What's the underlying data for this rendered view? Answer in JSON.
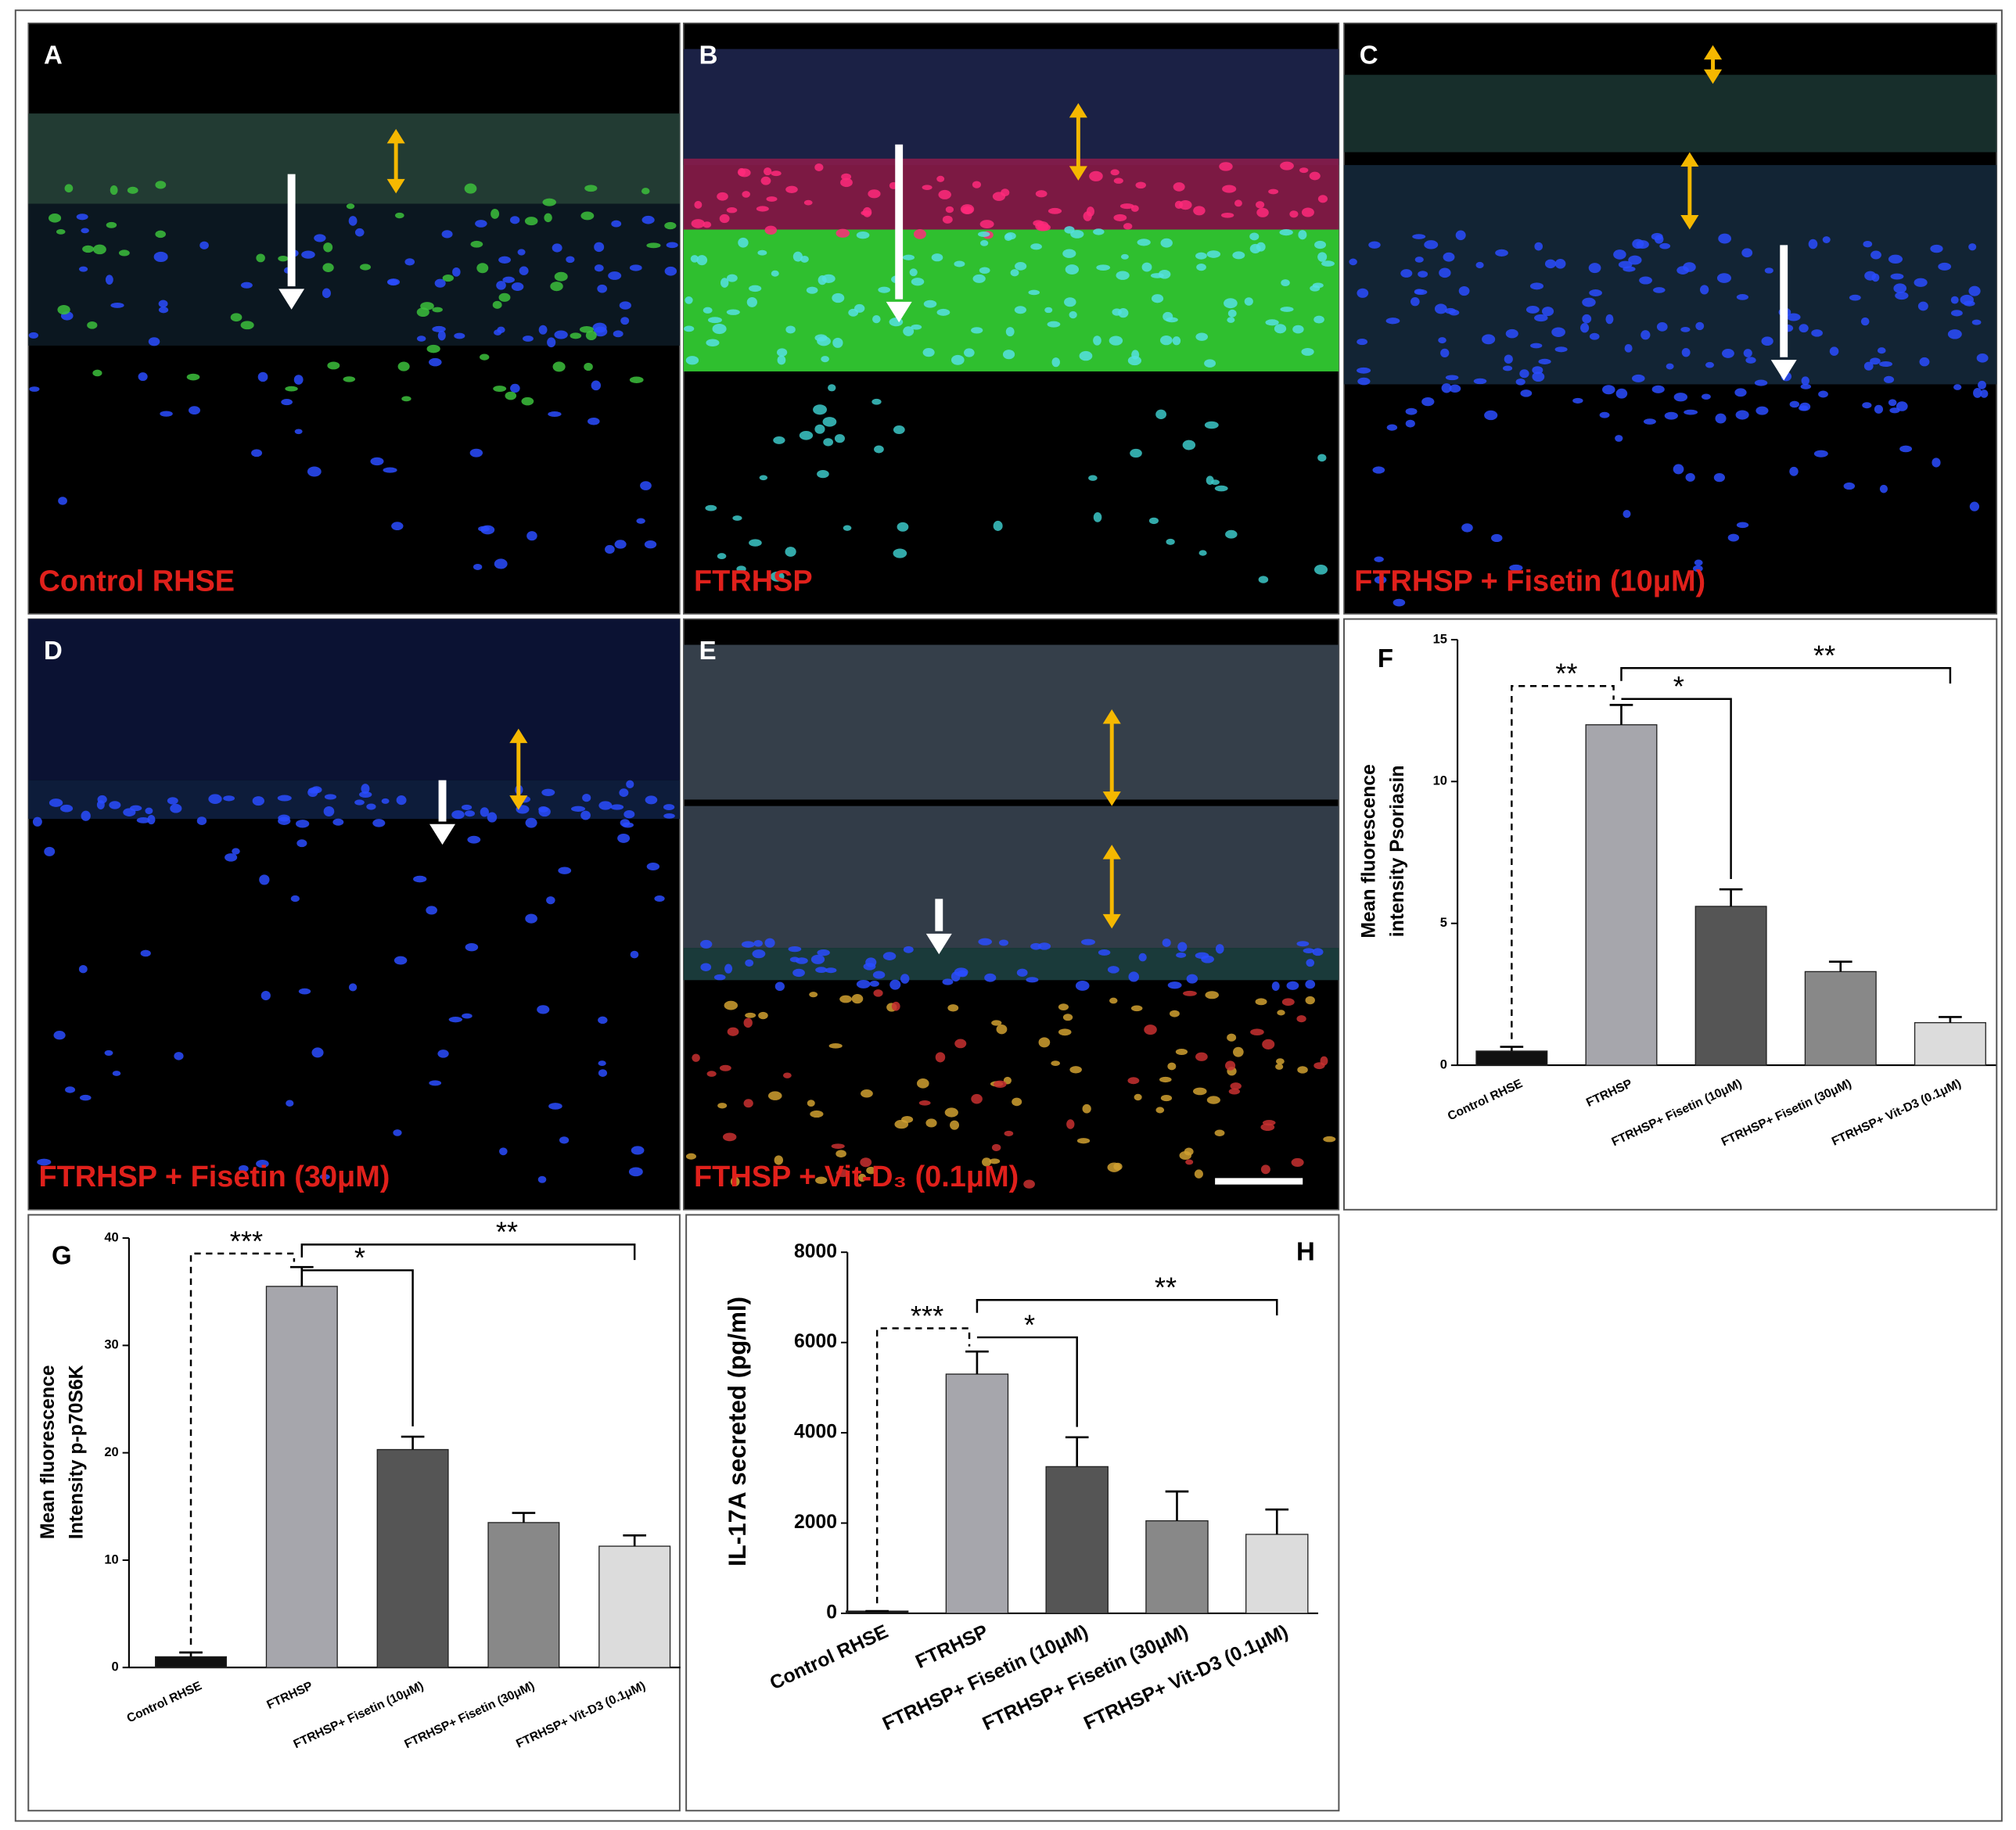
{
  "image_panels": [
    {
      "letter": "A",
      "caption": "Control RHSE"
    },
    {
      "letter": "B",
      "caption": "FTRHSP"
    },
    {
      "letter": "C",
      "caption": "FTRHSP + Fisetin (10μM)"
    },
    {
      "letter": "D",
      "caption": "FTRHSP + Fisetin (30μM)"
    },
    {
      "letter": "E",
      "caption": "FTHSP + Vit-D₃ (0.1μM)"
    }
  ],
  "chart_data": [
    {
      "type": "bar",
      "label": "F",
      "ylabel": [
        "Mean fluorescence",
        "intensity Psoriasin"
      ],
      "categories": [
        "Control RHSE",
        "FTRHSP",
        "FTRHSP+ Fisetin (10μM)",
        "FTRHSP+ Fisetin (30μM)",
        "FTRHSP+ Vit-D3 (0.1μM)"
      ],
      "values": [
        0.5,
        12,
        5.6,
        3.3,
        1.5
      ],
      "errors": [
        0.15,
        0.7,
        0.6,
        0.35,
        0.2
      ],
      "colors": [
        "#111111",
        "#a6a6ac",
        "#555555",
        "#888888",
        "#dcdcdc"
      ],
      "ylim": [
        0,
        15
      ],
      "yticks": [
        0,
        5,
        10,
        15
      ],
      "annotations": [
        "**",
        "*",
        "**"
      ]
    },
    {
      "type": "bar",
      "label": "G",
      "ylabel": [
        "Mean fluorescence",
        "Intensity p-p70S6K"
      ],
      "categories": [
        "Control RHSE",
        "FTRHSP",
        "FTRHSP+ Fisetin (10μM)",
        "FTRHSP+ Fisetin (30μM)",
        "FTRHSP+ Vit-D3 (0.1μM)"
      ],
      "values": [
        1,
        35.5,
        20.3,
        13.5,
        11.3
      ],
      "errors": [
        0.4,
        1.8,
        1.2,
        0.9,
        1.0
      ],
      "colors": [
        "#111111",
        "#a6a6ac",
        "#555555",
        "#888888",
        "#dcdcdc"
      ],
      "ylim": [
        0,
        40
      ],
      "yticks": [
        0,
        10,
        20,
        30,
        40
      ],
      "annotations": [
        "***",
        "*",
        "**"
      ]
    },
    {
      "type": "bar",
      "label": "H",
      "ylabel": [
        "IL-17A secreted (pg/ml)"
      ],
      "categories": [
        "Control RHSE",
        "FTRHSP",
        "FTRHSP+ Fisetin (10μM)",
        "FTRHSP+ Fisetin (30μM)",
        "FTRHSP+ Vit-D3 (0.1μM)"
      ],
      "values": [
        50,
        5300,
        3250,
        2050,
        1750
      ],
      "errors": [
        0,
        500,
        650,
        650,
        550
      ],
      "colors": [
        "#111111",
        "#a6a6ac",
        "#555555",
        "#888888",
        "#dcdcdc"
      ],
      "ylim": [
        0,
        8000
      ],
      "yticks": [
        0,
        2000,
        4000,
        6000,
        8000
      ],
      "annotations": [
        "***",
        "*",
        "**"
      ]
    }
  ]
}
